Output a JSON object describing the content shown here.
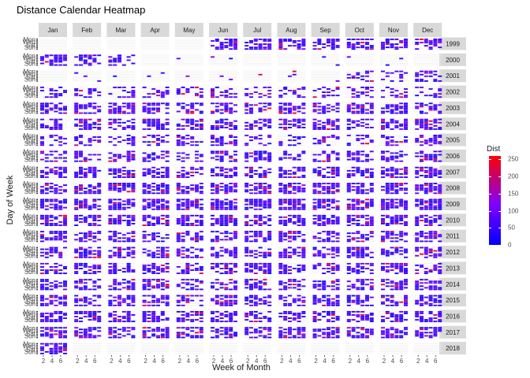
{
  "chart_data": {
    "type": "heatmap",
    "title": "Distance Calendar Heatmap",
    "xlabel": "Week of Month",
    "ylabel": "Day of Week",
    "x_ticks": [
      "2",
      "4",
      "6"
    ],
    "y_tick_labels": [
      "Mon",
      "Wed",
      "Sat",
      "Sun"
    ],
    "months": [
      "Jan",
      "Feb",
      "Mar",
      "Apr",
      "May",
      "Jun",
      "Jul",
      "Aug",
      "Sep",
      "Oct",
      "Nov",
      "Dec"
    ],
    "years": [
      "1999",
      "2000",
      "2001",
      "2002",
      "2003",
      "2004",
      "2005",
      "2006",
      "2007",
      "2008",
      "2009",
      "2010",
      "2011",
      "2012",
      "2013",
      "2014",
      "2015",
      "2016",
      "2017",
      "2018"
    ],
    "legend": {
      "title": "Dist",
      "ticks": [
        0,
        50,
        100,
        150,
        200,
        250
      ],
      "range": [
        0,
        260
      ],
      "low_color": "#0000ff",
      "mid_color": "#7f00ff",
      "high_color": "#ff0000"
    },
    "data_window": {
      "start": "1999-06",
      "end": "2018-01"
    },
    "density_by_year": [
      0.0,
      0.3,
      0.35,
      0.4,
      0.6,
      0.6,
      0.4,
      0.45,
      0.65,
      0.7,
      0.75,
      0.65,
      0.6,
      0.6,
      0.55,
      0.55,
      0.6,
      0.65,
      0.65,
      0.7
    ],
    "month_scale_1999_2000": [
      0.0,
      0.0,
      0.0,
      0.0,
      0.0,
      1.0,
      1.0,
      1.0,
      1.0,
      1.0,
      1.0,
      1.0,
      0.7,
      0.6,
      0.5,
      0.1,
      0.05,
      0.05,
      0.05,
      0.05,
      0.05,
      0.05,
      0.05,
      0.05
    ],
    "month_scale_2001": [
      0.05,
      0.05,
      0.05,
      0.05,
      0.05,
      0.05,
      0.05,
      0.05,
      0.05,
      0.9,
      0.9,
      0.9
    ],
    "colors": {
      "strip": "#d9d9d9",
      "grid": "#ebebeb",
      "text": "#1a1a1a",
      "tick_text": "#4d4d4d"
    }
  }
}
